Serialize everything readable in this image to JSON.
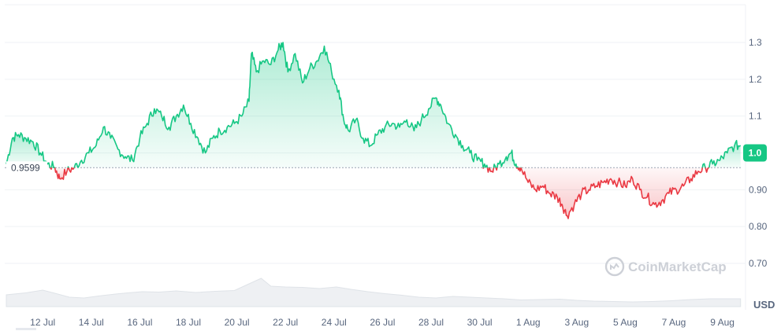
{
  "chart_data": {
    "type": "area",
    "currency_label": "USD",
    "watermark": "CoinMarketCap",
    "baseline": {
      "value": 0.9599,
      "label": "0.9599"
    },
    "current": {
      "value": 1.0,
      "label": "1.0"
    },
    "ylim": [
      0.62,
      1.41
    ],
    "y_ticks": [
      {
        "value": 1.3,
        "label": "1.3"
      },
      {
        "value": 1.2,
        "label": "1.2"
      },
      {
        "value": 1.1,
        "label": "1.1"
      },
      {
        "value": 1.0,
        "label": "1.0"
      },
      {
        "value": 0.9,
        "label": "0.90"
      },
      {
        "value": 0.8,
        "label": "0.80"
      },
      {
        "value": 0.7,
        "label": "0.70"
      }
    ],
    "x_start": "11 Jul",
    "x_end": "10 Aug",
    "x_ticks": [
      {
        "day": 1.5,
        "label": "12 Jul"
      },
      {
        "day": 3.5,
        "label": "14 Jul"
      },
      {
        "day": 5.5,
        "label": "16 Jul"
      },
      {
        "day": 7.5,
        "label": "18 Jul"
      },
      {
        "day": 9.5,
        "label": "20 Jul"
      },
      {
        "day": 11.5,
        "label": "22 Jul"
      },
      {
        "day": 13.5,
        "label": "24 Jul"
      },
      {
        "day": 15.5,
        "label": "26 Jul"
      },
      {
        "day": 17.5,
        "label": "28 Jul"
      },
      {
        "day": 19.5,
        "label": "30 Jul"
      },
      {
        "day": 21.5,
        "label": "1 Aug"
      },
      {
        "day": 23.5,
        "label": "3 Aug"
      },
      {
        "day": 25.5,
        "label": "5 Aug"
      },
      {
        "day": 27.5,
        "label": "7 Aug"
      },
      {
        "day": 29.5,
        "label": "9 Aug"
      }
    ],
    "price": [
      [
        0.0,
        0.97
      ],
      [
        0.25,
        1.04
      ],
      [
        0.5,
        1.05
      ],
      [
        0.8,
        1.04
      ],
      [
        1.1,
        1.03
      ],
      [
        1.4,
        1.0
      ],
      [
        1.7,
        0.97
      ],
      [
        2.0,
        0.96
      ],
      [
        2.2,
        0.93
      ],
      [
        2.5,
        0.95
      ],
      [
        2.8,
        0.96
      ],
      [
        3.1,
        0.98
      ],
      [
        3.4,
        1.0
      ],
      [
        3.7,
        1.02
      ],
      [
        4.0,
        1.07
      ],
      [
        4.3,
        1.04
      ],
      [
        4.6,
        1.01
      ],
      [
        4.9,
        0.99
      ],
      [
        5.2,
        0.98
      ],
      [
        5.5,
        1.04
      ],
      [
        5.8,
        1.08
      ],
      [
        6.1,
        1.12
      ],
      [
        6.4,
        1.1
      ],
      [
        6.7,
        1.07
      ],
      [
        7.0,
        1.1
      ],
      [
        7.3,
        1.13
      ],
      [
        7.6,
        1.08
      ],
      [
        7.9,
        1.04
      ],
      [
        8.2,
        1.0
      ],
      [
        8.5,
        1.04
      ],
      [
        8.8,
        1.06
      ],
      [
        9.1,
        1.07
      ],
      [
        9.4,
        1.08
      ],
      [
        9.7,
        1.1
      ],
      [
        10.0,
        1.14
      ],
      [
        10.1,
        1.27
      ],
      [
        10.3,
        1.22
      ],
      [
        10.6,
        1.25
      ],
      [
        10.9,
        1.24
      ],
      [
        11.2,
        1.28
      ],
      [
        11.4,
        1.3
      ],
      [
        11.6,
        1.22
      ],
      [
        11.9,
        1.27
      ],
      [
        12.2,
        1.19
      ],
      [
        12.5,
        1.23
      ],
      [
        12.8,
        1.25
      ],
      [
        13.1,
        1.29
      ],
      [
        13.4,
        1.22
      ],
      [
        13.7,
        1.17
      ],
      [
        13.9,
        1.09
      ],
      [
        14.1,
        1.06
      ],
      [
        14.4,
        1.09
      ],
      [
        14.7,
        1.04
      ],
      [
        15.0,
        1.02
      ],
      [
        15.3,
        1.05
      ],
      [
        15.6,
        1.07
      ],
      [
        15.9,
        1.08
      ],
      [
        16.2,
        1.07
      ],
      [
        16.5,
        1.09
      ],
      [
        16.8,
        1.06
      ],
      [
        17.1,
        1.09
      ],
      [
        17.4,
        1.12
      ],
      [
        17.7,
        1.15
      ],
      [
        17.9,
        1.13
      ],
      [
        18.2,
        1.08
      ],
      [
        18.5,
        1.05
      ],
      [
        18.8,
        1.02
      ],
      [
        19.1,
        1.0
      ],
      [
        19.4,
        0.98
      ],
      [
        19.7,
        0.97
      ],
      [
        20.0,
        0.95
      ],
      [
        20.3,
        0.97
      ],
      [
        20.6,
        0.99
      ],
      [
        20.8,
        1.0
      ],
      [
        21.0,
        0.97
      ],
      [
        21.2,
        0.96
      ],
      [
        21.5,
        0.92
      ],
      [
        21.8,
        0.9
      ],
      [
        22.1,
        0.91
      ],
      [
        22.4,
        0.89
      ],
      [
        22.7,
        0.88
      ],
      [
        22.9,
        0.86
      ],
      [
        23.1,
        0.83
      ],
      [
        23.4,
        0.86
      ],
      [
        23.7,
        0.89
      ],
      [
        24.0,
        0.9
      ],
      [
        24.3,
        0.91
      ],
      [
        24.6,
        0.92
      ],
      [
        24.9,
        0.93
      ],
      [
        25.2,
        0.92
      ],
      [
        25.5,
        0.91
      ],
      [
        25.8,
        0.93
      ],
      [
        26.1,
        0.9
      ],
      [
        26.4,
        0.88
      ],
      [
        26.7,
        0.86
      ],
      [
        27.0,
        0.87
      ],
      [
        27.3,
        0.89
      ],
      [
        27.6,
        0.9
      ],
      [
        27.9,
        0.91
      ],
      [
        28.2,
        0.93
      ],
      [
        28.5,
        0.95
      ],
      [
        28.8,
        0.96
      ],
      [
        29.1,
        0.97
      ],
      [
        29.4,
        0.98
      ],
      [
        29.7,
        1.0
      ],
      [
        30.0,
        1.02
      ],
      [
        30.25,
        1.02
      ]
    ],
    "volume": [
      [
        0.0,
        0.3
      ],
      [
        0.8,
        0.35
      ],
      [
        1.5,
        0.42
      ],
      [
        2.0,
        0.34
      ],
      [
        2.6,
        0.24
      ],
      [
        3.2,
        0.22
      ],
      [
        3.8,
        0.27
      ],
      [
        4.5,
        0.32
      ],
      [
        5.0,
        0.35
      ],
      [
        5.6,
        0.38
      ],
      [
        6.3,
        0.37
      ],
      [
        7.0,
        0.4
      ],
      [
        7.8,
        0.36
      ],
      [
        8.6,
        0.39
      ],
      [
        9.4,
        0.41
      ],
      [
        10.0,
        0.58
      ],
      [
        10.5,
        0.72
      ],
      [
        10.9,
        0.52
      ],
      [
        11.5,
        0.5
      ],
      [
        12.2,
        0.49
      ],
      [
        12.9,
        0.46
      ],
      [
        13.6,
        0.5
      ],
      [
        14.2,
        0.44
      ],
      [
        14.9,
        0.38
      ],
      [
        15.6,
        0.33
      ],
      [
        16.3,
        0.29
      ],
      [
        17.0,
        0.24
      ],
      [
        17.7,
        0.22
      ],
      [
        18.4,
        0.26
      ],
      [
        19.1,
        0.24
      ],
      [
        19.8,
        0.22
      ],
      [
        20.5,
        0.2
      ],
      [
        21.2,
        0.17
      ],
      [
        22.0,
        0.18
      ],
      [
        22.8,
        0.19
      ],
      [
        23.5,
        0.16
      ],
      [
        24.2,
        0.14
      ],
      [
        25.0,
        0.13
      ],
      [
        25.8,
        0.12
      ],
      [
        26.6,
        0.13
      ],
      [
        27.4,
        0.15
      ],
      [
        28.2,
        0.18
      ],
      [
        29.0,
        0.2
      ],
      [
        29.8,
        0.2
      ],
      [
        30.25,
        0.2
      ]
    ]
  }
}
